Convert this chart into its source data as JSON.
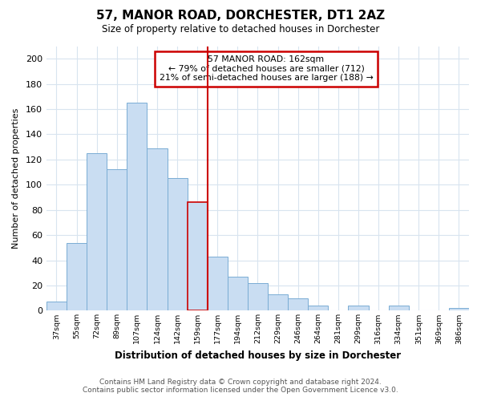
{
  "title": "57, MANOR ROAD, DORCHESTER, DT1 2AZ",
  "subtitle": "Size of property relative to detached houses in Dorchester",
  "xlabel": "Distribution of detached houses by size in Dorchester",
  "ylabel": "Number of detached properties",
  "bar_labels": [
    "37sqm",
    "55sqm",
    "72sqm",
    "89sqm",
    "107sqm",
    "124sqm",
    "142sqm",
    "159sqm",
    "177sqm",
    "194sqm",
    "212sqm",
    "229sqm",
    "246sqm",
    "264sqm",
    "281sqm",
    "299sqm",
    "316sqm",
    "334sqm",
    "351sqm",
    "369sqm",
    "386sqm"
  ],
  "bar_values": [
    7,
    54,
    125,
    112,
    165,
    129,
    105,
    86,
    43,
    27,
    22,
    13,
    10,
    4,
    0,
    4,
    0,
    4,
    0,
    0,
    2
  ],
  "bar_color": "#c9ddf2",
  "bar_edge_color": "#7aadd4",
  "highlight_index": 7,
  "vline_color": "#cc0000",
  "annotation_text": "57 MANOR ROAD: 162sqm\n← 79% of detached houses are smaller (712)\n21% of semi-detached houses are larger (188) →",
  "annotation_box_color": "#ffffff",
  "annotation_box_edge": "#cc0000",
  "ylim": [
    0,
    210
  ],
  "yticks": [
    0,
    20,
    40,
    60,
    80,
    100,
    120,
    140,
    160,
    180,
    200
  ],
  "footer_line1": "Contains HM Land Registry data © Crown copyright and database right 2024.",
  "footer_line2": "Contains public sector information licensed under the Open Government Licence v3.0.",
  "background_color": "#ffffff",
  "grid_color": "#d8e4ef"
}
